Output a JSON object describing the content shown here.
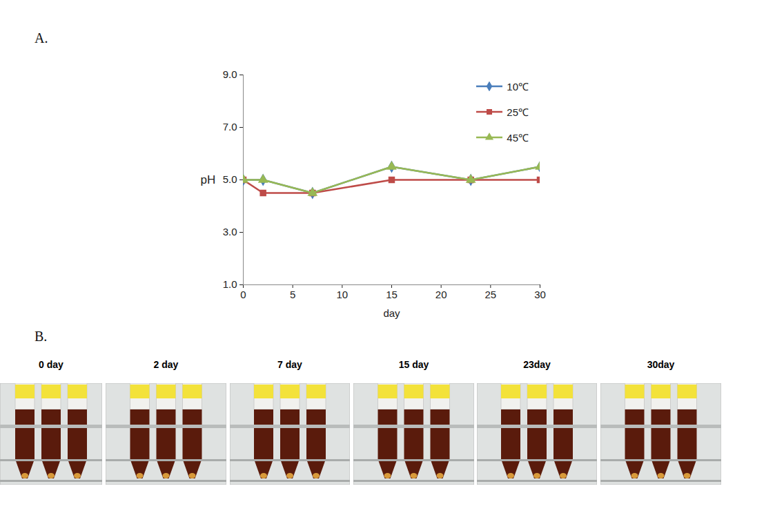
{
  "panel_labels": [
    "A.",
    "B."
  ],
  "chart_data": {
    "type": "line",
    "x_label": "day",
    "y_label": "pH",
    "x": [
      0,
      2,
      7,
      15,
      23,
      30
    ],
    "series": [
      {
        "name": "10℃",
        "color": "#4a7ebb",
        "marker": "diamond",
        "values": [
          5.0,
          5.0,
          4.5,
          5.5,
          5.0,
          5.5
        ]
      },
      {
        "name": "25℃",
        "color": "#be4b48",
        "marker": "square",
        "values": [
          5.0,
          4.5,
          4.5,
          5.0,
          5.0,
          5.0
        ]
      },
      {
        "name": "45℃",
        "color": "#98b954",
        "marker": "triangle",
        "values": [
          5.0,
          5.0,
          4.5,
          5.5,
          5.0,
          5.5
        ]
      }
    ],
    "xlim": [
      0,
      30
    ],
    "xticks": [
      0,
      5,
      10,
      15,
      20,
      25,
      30
    ],
    "ylim": [
      1,
      9
    ],
    "yticks": [
      {
        "value": 1,
        "label": "1.0"
      },
      {
        "value": 3,
        "label": "3.0"
      },
      {
        "value": 5,
        "label": "5.0"
      },
      {
        "value": 7,
        "label": "7.0"
      },
      {
        "value": 9,
        "label": "9.0"
      }
    ],
    "grid": false,
    "legend": "upper right"
  },
  "photos": {
    "captions": [
      "0 day",
      "2 day",
      "7 day",
      "15 day",
      "23day",
      "30day"
    ]
  }
}
